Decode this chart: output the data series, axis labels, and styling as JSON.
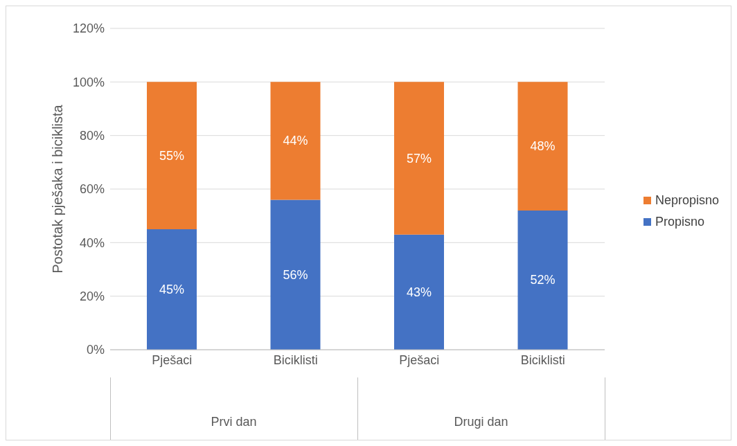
{
  "chart_data": {
    "type": "bar",
    "ylabel": "Postotak pješaka i biciklista",
    "categories": [
      "Pješaci",
      "Biciklisti",
      "Pješaci",
      "Biciklisti"
    ],
    "stacked": true,
    "series": [
      {
        "name": "Propisno",
        "color": "#4472c4",
        "values": [
          45,
          56,
          43,
          52
        ],
        "value_labels": [
          "45%",
          "56%",
          "43%",
          "52%"
        ]
      },
      {
        "name": "Nepropisno",
        "color": "#ed7d31",
        "values": [
          55,
          44,
          57,
          48
        ],
        "value_labels": [
          "55%",
          "44%",
          "57%",
          "48%"
        ]
      }
    ],
    "ylim": [
      0,
      120
    ],
    "yticks": [
      {
        "value": 0,
        "label": "0%"
      },
      {
        "value": 20,
        "label": "20%"
      },
      {
        "value": 40,
        "label": "40%"
      },
      {
        "value": 60,
        "label": "60%"
      },
      {
        "value": 80,
        "label": "80%"
      },
      {
        "value": 100,
        "label": "100%"
      },
      {
        "value": 120,
        "label": "120%"
      }
    ],
    "grid": "y",
    "legend": "right",
    "annotations": [
      "Prvi dan",
      "Drugi dan"
    ]
  }
}
